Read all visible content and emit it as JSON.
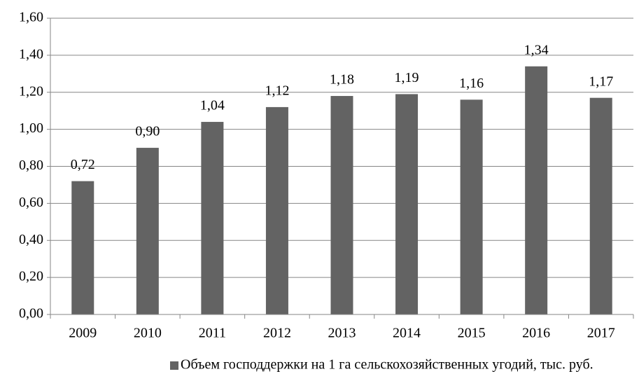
{
  "chart_data": {
    "type": "bar",
    "categories": [
      "2009",
      "2010",
      "2011",
      "2012",
      "2013",
      "2014",
      "2015",
      "2016",
      "2017"
    ],
    "series": [
      {
        "name": "Объем господдержки на 1 га сельскохозяйственных угодий, тыс. руб.",
        "color": "#636363",
        "values": [
          0.72,
          0.9,
          1.04,
          1.12,
          1.18,
          1.19,
          1.16,
          1.34,
          1.17
        ],
        "value_labels": [
          "0,72",
          "0,90",
          "1,04",
          "1,12",
          "1,18",
          "1,19",
          "1,16",
          "1,34",
          "1,17"
        ]
      }
    ],
    "ylim": [
      0,
      1.6
    ],
    "yticks": [
      {
        "value": 0,
        "label": "0,00"
      },
      {
        "value": 0.2,
        "label": "0,20"
      },
      {
        "value": 0.4,
        "label": "0,40"
      },
      {
        "value": 0.6,
        "label": "0,60"
      },
      {
        "value": 0.8,
        "label": "0,80"
      },
      {
        "value": 1.0,
        "label": "1,00"
      },
      {
        "value": 1.2,
        "label": "1,20"
      },
      {
        "value": 1.4,
        "label": "1,40"
      },
      {
        "value": 1.6,
        "label": "1,60"
      }
    ],
    "grid": true,
    "legend": "bottom"
  }
}
